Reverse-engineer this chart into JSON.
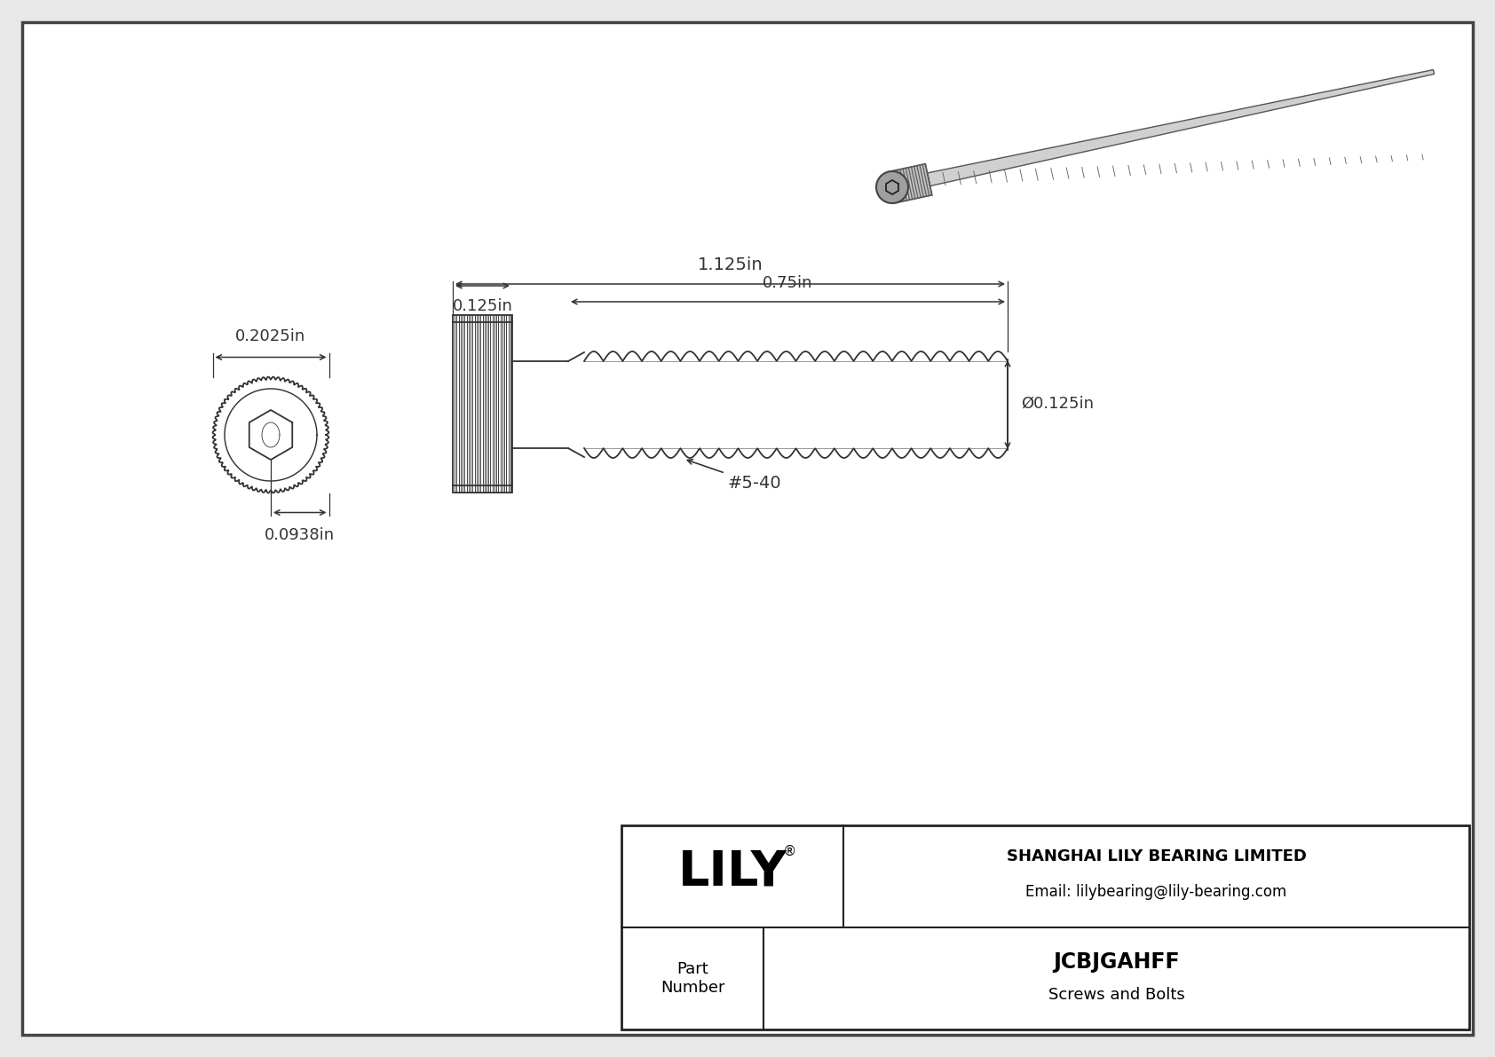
{
  "bg_color": "#e8e8e8",
  "drawing_bg": "#ffffff",
  "border_color": "#555555",
  "line_color": "#333333",
  "company_name": "SHANGHAI LILY BEARING LIMITED",
  "company_email": "Email: lilybearing@lily-bearing.com",
  "part_number": "JCBJGAHFF",
  "part_category": "Screws and Bolts",
  "part_label": "Part\nNumber",
  "lily_logo": "LILY",
  "dim_head_width": "0.2025in",
  "dim_head_length": "0.125in",
  "dim_total_length": "1.125in",
  "dim_thread_length": "0.75in",
  "dim_thread_dia": "Ø0.125in",
  "dim_socket_depth": "0.0938in",
  "thread_label": "#5-40"
}
